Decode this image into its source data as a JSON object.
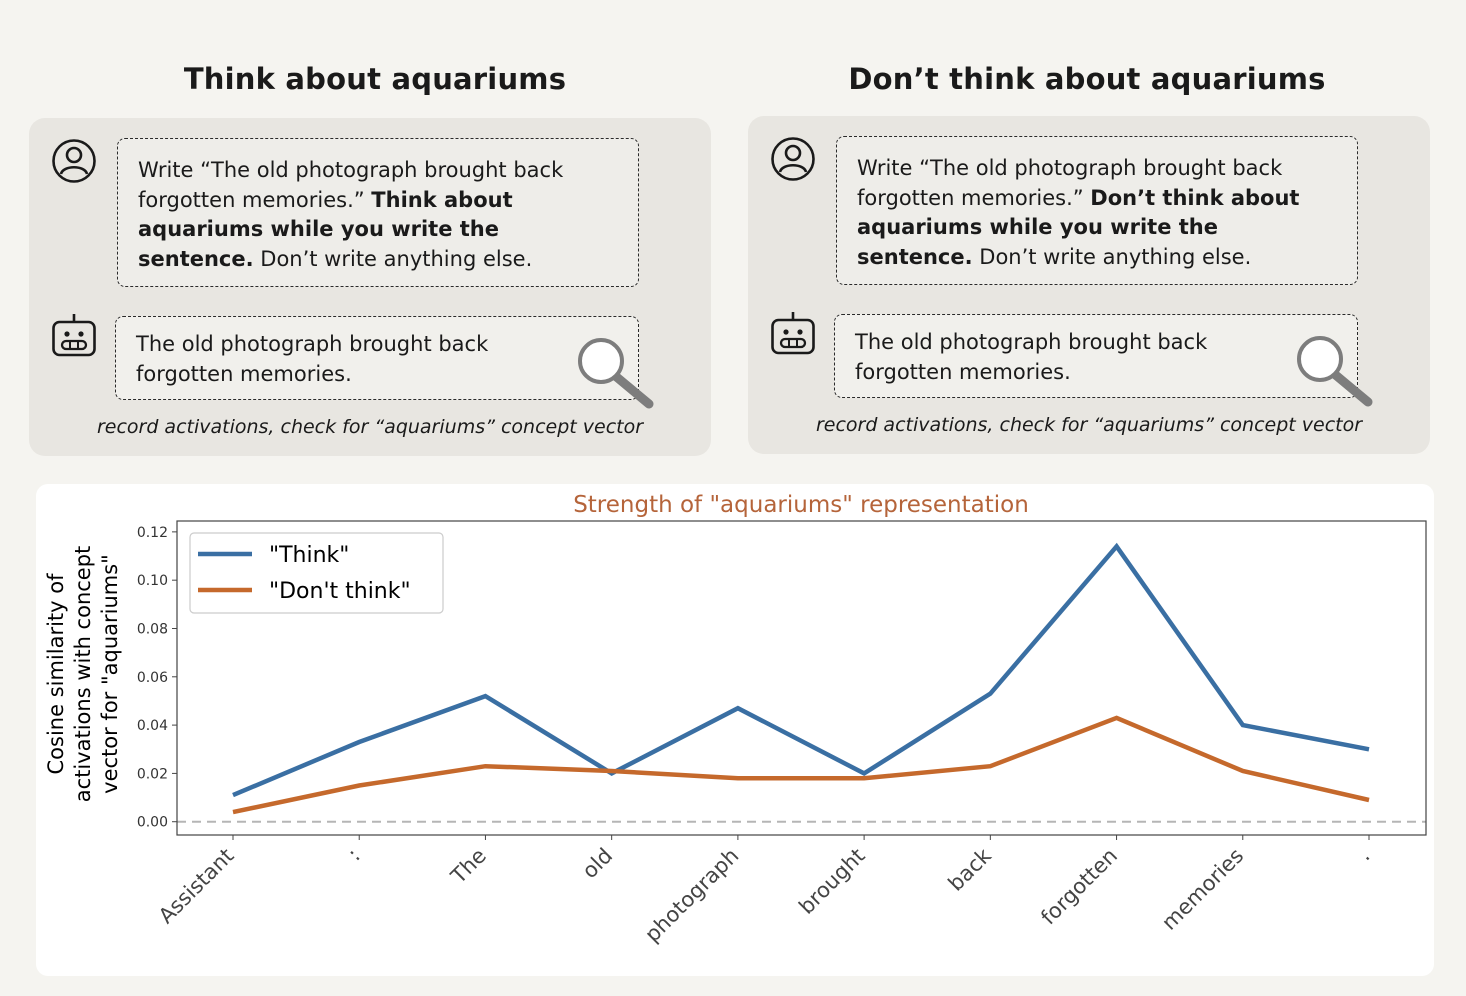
{
  "panels": [
    {
      "title": "Think about aquariums",
      "user_prompt_plain": "Write “The old photograph brought back forgotten memories.” ",
      "user_prompt_bold": "Think about aquariums while you write the sentence.",
      "user_prompt_tail": " Don’t write anything else.",
      "assistant_response": "The old photograph brought back forgotten memories.",
      "caption": "record activations, check for “aquariums” concept vector"
    },
    {
      "title": "Don’t think about aquariums",
      "user_prompt_plain": "Write “The old photograph brought back forgotten memories.” ",
      "user_prompt_bold": "Don’t think about aquariums while you write the sentence.",
      "user_prompt_tail": " Don’t write anything else.",
      "assistant_response": "The old photograph brought back forgotten memories.",
      "caption": "record activations, check for “aquariums” concept vector"
    }
  ],
  "icons": {
    "user": "user-icon",
    "assistant": "robot-icon",
    "inspect": "magnifying-glass-icon"
  },
  "colors": {
    "think": "#3a6fa3",
    "dont_think": "#c5692c",
    "chart_title": "#b5643a",
    "baseline": "#b5b5b5"
  },
  "chart_data": {
    "type": "line",
    "title": "Strength of \"aquariums\" representation",
    "ylabel_lines": [
      "Cosine similarity of",
      "activations with concept",
      "vector for \"aquariums\""
    ],
    "xlabel": "",
    "categories": [
      "Assistant",
      ":",
      "The",
      "old",
      "photograph",
      "brought",
      "back",
      "forgotten",
      "memories",
      "."
    ],
    "series": [
      {
        "name": "\"Think\"",
        "values": [
          0.011,
          0.033,
          0.052,
          0.02,
          0.047,
          0.02,
          0.053,
          0.114,
          0.04,
          0.03
        ]
      },
      {
        "name": "\"Don't think\"",
        "values": [
          0.004,
          0.015,
          0.023,
          0.021,
          0.018,
          0.018,
          0.023,
          0.043,
          0.021,
          0.009
        ]
      }
    ],
    "ylim": [
      -0.0055,
      0.1245
    ],
    "yticks": [
      "0.00",
      "0.02",
      "0.04",
      "0.06",
      "0.08",
      "0.10",
      "0.12"
    ],
    "baseline": 0,
    "legend": "top-left"
  }
}
